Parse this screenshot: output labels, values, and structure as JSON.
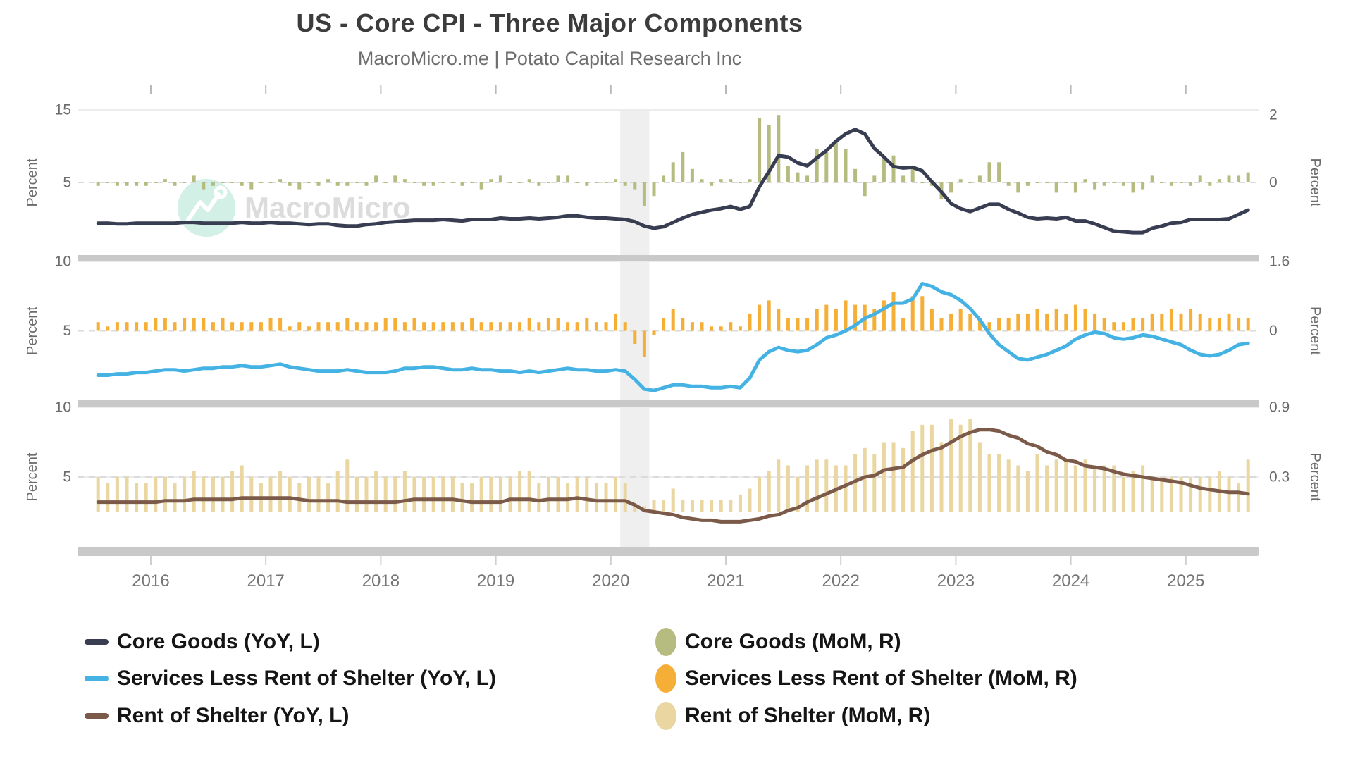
{
  "header": {
    "title": "US - Core CPI - Three Major Components",
    "subtitle": "MacroMicro.me | Potato Capital Research Inc"
  },
  "watermark": {
    "text": "MacroMicro",
    "circle_color": "#d3f0e7",
    "text_color": "#dcdcdc"
  },
  "colors": {
    "core_goods_line": "#383D52",
    "core_goods_bar": "#B6BC80",
    "services_line": "#45B2E4",
    "services_bar": "#F5AE36",
    "rent_line": "#7C5A49",
    "rent_bar": "#E9D6A0",
    "divider": "#C9C9C9",
    "recession_band": "#EFEFEF",
    "grid_solid": "#ECECEC",
    "grid_dashed": "#DBDBDB",
    "axis_text": "#6b6b6b",
    "year_text": "#757575"
  },
  "chart_data": {
    "type": "line+bar, 3 stacked panels, dual y-axes",
    "months": {
      "start": "2015-07",
      "end": "2025-07",
      "frequency": "monthly",
      "count": 121
    },
    "x_axis": {
      "tick_years": [
        2016,
        2017,
        2018,
        2019,
        2020,
        2021,
        2022,
        2023,
        2024,
        2025
      ]
    },
    "recession_band": {
      "from": "2020-02",
      "to": "2020-04"
    },
    "panels": [
      {
        "ylabel_left": "Percent",
        "ylabel_right": "Percent",
        "left_axis": {
          "min": -5,
          "max": 15,
          "ticks": [
            {
              "v": 15,
              "label": "15"
            },
            {
              "v": 5,
              "label": "5"
            }
          ]
        },
        "right_axis": {
          "min": -2.15,
          "max": 2.15,
          "ticks": [
            {
              "v": 2,
              "label": "2"
            },
            {
              "v": 0,
              "label": "0"
            }
          ]
        },
        "line_series": {
          "name": "Core Goods (YoY, L)",
          "color": "#383D52",
          "values": [
            -0.6,
            -0.6,
            -0.7,
            -0.7,
            -0.6,
            -0.6,
            -0.6,
            -0.6,
            -0.6,
            -0.5,
            -0.5,
            -0.6,
            -0.6,
            -0.6,
            -0.6,
            -0.5,
            -0.6,
            -0.6,
            -0.5,
            -0.6,
            -0.6,
            -0.7,
            -0.8,
            -0.7,
            -0.7,
            -0.9,
            -1.0,
            -1.0,
            -0.8,
            -0.7,
            -0.5,
            -0.4,
            -0.3,
            -0.2,
            -0.2,
            -0.2,
            -0.1,
            -0.2,
            -0.3,
            -0.1,
            -0.1,
            -0.1,
            0.1,
            0.0,
            0.0,
            0.1,
            0.0,
            0.1,
            0.2,
            0.4,
            0.4,
            0.2,
            0.1,
            0.1,
            0.0,
            -0.1,
            -0.4,
            -1.0,
            -1.3,
            -1.1,
            -0.5,
            0.1,
            0.6,
            0.9,
            1.2,
            1.4,
            1.7,
            1.3,
            1.7,
            4.4,
            6.5,
            8.7,
            8.5,
            7.7,
            7.3,
            8.4,
            9.4,
            10.7,
            11.7,
            12.3,
            11.7,
            9.7,
            8.5,
            7.2,
            7.0,
            7.1,
            6.6,
            5.1,
            3.7,
            2.1,
            1.4,
            1.0,
            1.5,
            2.0,
            2.0,
            1.3,
            0.8,
            0.2,
            0.0,
            0.1,
            0.0,
            0.2,
            -0.3,
            -0.3,
            -0.7,
            -1.2,
            -1.7,
            -1.8,
            -1.9,
            -1.9,
            -1.3,
            -1.0,
            -0.6,
            -0.5,
            -0.1,
            -0.1,
            -0.1,
            -0.1,
            0.0,
            0.6,
            1.2
          ]
        },
        "bar_series": {
          "name": "Core Goods (MoM, R)",
          "color": "#B6BC80",
          "values": [
            -0.1,
            0.0,
            -0.1,
            -0.1,
            -0.1,
            -0.1,
            0.0,
            0.1,
            -0.1,
            0.0,
            0.2,
            -0.2,
            -0.1,
            0.0,
            0.0,
            -0.1,
            -0.2,
            0.0,
            0.0,
            0.1,
            -0.1,
            -0.2,
            0.0,
            -0.1,
            0.1,
            -0.1,
            -0.1,
            0.0,
            -0.1,
            0.2,
            0.0,
            0.2,
            0.1,
            0.0,
            -0.1,
            -0.1,
            0.0,
            0.0,
            -0.1,
            0.0,
            -0.2,
            0.1,
            0.2,
            0.0,
            0.0,
            0.1,
            -0.1,
            0.0,
            0.2,
            0.2,
            0.0,
            -0.1,
            0.0,
            0.0,
            0.1,
            -0.1,
            -0.2,
            -0.7,
            -0.4,
            0.2,
            0.6,
            0.9,
            0.4,
            0.1,
            -0.1,
            0.1,
            0.1,
            0.0,
            0.1,
            1.9,
            1.7,
            2.0,
            0.5,
            0.3,
            0.2,
            1.0,
            0.9,
            1.2,
            1.0,
            0.4,
            -0.4,
            0.2,
            0.7,
            0.8,
            0.2,
            0.5,
            0.0,
            -0.1,
            -0.5,
            -0.3,
            0.1,
            0.0,
            0.2,
            0.6,
            0.6,
            -0.1,
            -0.3,
            -0.1,
            0.0,
            0.0,
            -0.3,
            0.0,
            -0.3,
            0.1,
            -0.2,
            -0.1,
            0.0,
            -0.1,
            -0.3,
            -0.2,
            0.2,
            0.0,
            -0.1,
            0.0,
            -0.1,
            0.2,
            -0.1,
            0.1,
            0.2,
            0.2,
            0.3
          ]
        }
      },
      {
        "ylabel_left": "Percent",
        "ylabel_right": "Percent",
        "left_axis": {
          "min": 0,
          "max": 10,
          "ticks": [
            {
              "v": 10,
              "label": "10"
            },
            {
              "v": 5,
              "label": "5"
            }
          ]
        },
        "right_axis": {
          "min": -1.6,
          "max": 1.6,
          "ticks": [
            {
              "v": 1.6,
              "label": "1.6"
            },
            {
              "v": 0,
              "label": "0"
            }
          ]
        },
        "line_series": {
          "name": "Services Less Rent of Shelter (YoY, L)",
          "color": "#45B2E4",
          "values": [
            1.8,
            1.8,
            1.9,
            1.9,
            2.0,
            2.0,
            2.1,
            2.2,
            2.2,
            2.1,
            2.2,
            2.3,
            2.3,
            2.4,
            2.4,
            2.5,
            2.4,
            2.4,
            2.5,
            2.6,
            2.4,
            2.3,
            2.2,
            2.1,
            2.1,
            2.1,
            2.2,
            2.1,
            2.0,
            2.0,
            2.0,
            2.1,
            2.3,
            2.3,
            2.4,
            2.4,
            2.3,
            2.2,
            2.2,
            2.3,
            2.2,
            2.2,
            2.1,
            2.1,
            2.0,
            2.1,
            2.0,
            2.1,
            2.2,
            2.3,
            2.2,
            2.2,
            2.1,
            2.1,
            2.2,
            2.1,
            1.5,
            0.8,
            0.7,
            0.9,
            1.1,
            1.1,
            1.0,
            1.0,
            0.9,
            0.9,
            1.0,
            0.9,
            1.6,
            2.9,
            3.5,
            3.8,
            3.6,
            3.5,
            3.6,
            4.0,
            4.5,
            4.7,
            5.0,
            5.4,
            5.9,
            6.2,
            6.6,
            7.0,
            7.0,
            7.3,
            8.4,
            8.2,
            7.8,
            7.6,
            7.2,
            6.6,
            5.8,
            4.8,
            4.0,
            3.5,
            3.0,
            2.9,
            3.1,
            3.3,
            3.6,
            3.9,
            4.4,
            4.7,
            4.9,
            4.8,
            4.5,
            4.4,
            4.5,
            4.7,
            4.6,
            4.4,
            4.2,
            4.0,
            3.6,
            3.3,
            3.2,
            3.3,
            3.6,
            4.0,
            4.1
          ]
        },
        "bar_series": {
          "name": "Services Less Rent of Shelter (MoM, R)",
          "color": "#F5AE36",
          "values": [
            0.2,
            0.1,
            0.2,
            0.2,
            0.2,
            0.2,
            0.3,
            0.3,
            0.2,
            0.3,
            0.3,
            0.3,
            0.2,
            0.3,
            0.2,
            0.2,
            0.2,
            0.2,
            0.3,
            0.3,
            0.1,
            0.2,
            0.1,
            0.2,
            0.2,
            0.2,
            0.3,
            0.2,
            0.2,
            0.2,
            0.3,
            0.3,
            0.2,
            0.3,
            0.2,
            0.2,
            0.2,
            0.2,
            0.2,
            0.3,
            0.2,
            0.2,
            0.2,
            0.2,
            0.2,
            0.3,
            0.2,
            0.3,
            0.3,
            0.2,
            0.2,
            0.3,
            0.2,
            0.2,
            0.4,
            0.2,
            -0.3,
            -0.6,
            -0.1,
            0.3,
            0.5,
            0.3,
            0.2,
            0.2,
            0.1,
            0.1,
            0.2,
            0.1,
            0.4,
            0.6,
            0.7,
            0.5,
            0.3,
            0.3,
            0.3,
            0.5,
            0.6,
            0.5,
            0.7,
            0.6,
            0.6,
            0.5,
            0.7,
            0.9,
            0.3,
            0.8,
            0.8,
            0.5,
            0.3,
            0.4,
            0.5,
            0.4,
            0.3,
            0.2,
            0.3,
            0.3,
            0.4,
            0.4,
            0.5,
            0.4,
            0.5,
            0.4,
            0.6,
            0.5,
            0.4,
            0.3,
            0.2,
            0.2,
            0.3,
            0.3,
            0.4,
            0.4,
            0.5,
            0.4,
            0.5,
            0.4,
            0.3,
            0.3,
            0.4,
            0.3,
            0.3
          ]
        }
      },
      {
        "ylabel_left": "Percent",
        "ylabel_right": "Percent",
        "left_axis": {
          "min": 0,
          "max": 10,
          "ticks": [
            {
              "v": 10,
              "label": "10"
            },
            {
              "v": 5,
              "label": "5"
            }
          ]
        },
        "right_axis": {
          "min": -0.3,
          "max": 0.9,
          "ticks": [
            {
              "v": 0.9,
              "label": "0.9"
            },
            {
              "v": 0.3,
              "label": "0.3"
            }
          ]
        },
        "line_series": {
          "name": "Rent of Shelter (YoY, L)",
          "color": "#7C5A49",
          "values": [
            3.2,
            3.2,
            3.2,
            3.2,
            3.2,
            3.2,
            3.2,
            3.3,
            3.3,
            3.3,
            3.4,
            3.4,
            3.4,
            3.4,
            3.4,
            3.5,
            3.5,
            3.5,
            3.5,
            3.5,
            3.5,
            3.4,
            3.3,
            3.3,
            3.3,
            3.3,
            3.2,
            3.2,
            3.2,
            3.2,
            3.2,
            3.2,
            3.3,
            3.4,
            3.4,
            3.4,
            3.4,
            3.4,
            3.3,
            3.2,
            3.2,
            3.2,
            3.2,
            3.4,
            3.4,
            3.4,
            3.3,
            3.4,
            3.4,
            3.4,
            3.5,
            3.4,
            3.3,
            3.3,
            3.3,
            3.3,
            3.0,
            2.6,
            2.5,
            2.4,
            2.3,
            2.1,
            2.0,
            1.9,
            1.9,
            1.8,
            1.8,
            1.8,
            1.9,
            2.0,
            2.2,
            2.3,
            2.6,
            2.8,
            3.2,
            3.5,
            3.8,
            4.1,
            4.4,
            4.7,
            5.0,
            5.1,
            5.5,
            5.6,
            5.7,
            6.2,
            6.6,
            6.9,
            7.1,
            7.5,
            7.9,
            8.2,
            8.4,
            8.4,
            8.3,
            8.0,
            7.8,
            7.4,
            7.2,
            6.8,
            6.6,
            6.2,
            6.1,
            5.8,
            5.7,
            5.6,
            5.4,
            5.2,
            5.1,
            5.0,
            4.9,
            4.8,
            4.7,
            4.6,
            4.4,
            4.2,
            4.1,
            4.0,
            3.9,
            3.9,
            3.8
          ]
        },
        "bar_series": {
          "name": "Rent of Shelter (MoM, R)",
          "color": "#E9D6A0",
          "values": [
            0.3,
            0.25,
            0.3,
            0.3,
            0.25,
            0.25,
            0.3,
            0.3,
            0.25,
            0.3,
            0.35,
            0.3,
            0.3,
            0.3,
            0.35,
            0.4,
            0.3,
            0.25,
            0.3,
            0.35,
            0.3,
            0.25,
            0.3,
            0.3,
            0.25,
            0.35,
            0.45,
            0.3,
            0.3,
            0.35,
            0.3,
            0.3,
            0.35,
            0.3,
            0.3,
            0.3,
            0.3,
            0.3,
            0.25,
            0.25,
            0.3,
            0.3,
            0.3,
            0.3,
            0.35,
            0.35,
            0.25,
            0.3,
            0.3,
            0.25,
            0.3,
            0.3,
            0.25,
            0.25,
            0.3,
            0.25,
            0.05,
            0.05,
            0.1,
            0.1,
            0.2,
            0.1,
            0.1,
            0.1,
            0.1,
            0.1,
            0.1,
            0.15,
            0.2,
            0.3,
            0.35,
            0.45,
            0.4,
            0.3,
            0.4,
            0.45,
            0.45,
            0.4,
            0.4,
            0.5,
            0.55,
            0.5,
            0.6,
            0.6,
            0.55,
            0.7,
            0.75,
            0.75,
            0.6,
            0.8,
            0.75,
            0.8,
            0.6,
            0.5,
            0.5,
            0.45,
            0.4,
            0.35,
            0.5,
            0.4,
            0.45,
            0.45,
            0.4,
            0.45,
            0.4,
            0.4,
            0.4,
            0.3,
            0.35,
            0.4,
            0.3,
            0.3,
            0.3,
            0.3,
            0.3,
            0.3,
            0.3,
            0.35,
            0.3,
            0.25,
            0.45
          ]
        }
      }
    ]
  }
}
